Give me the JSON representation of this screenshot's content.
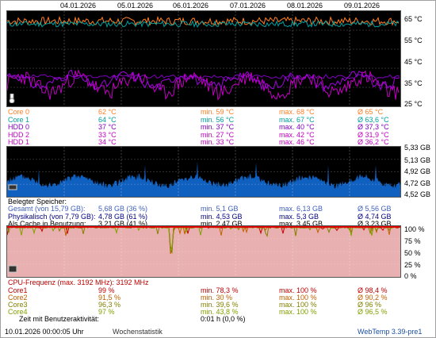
{
  "dates": [
    "04.01.2026",
    "05.01.2026",
    "06.01.2026",
    "07.01.2026",
    "08.01.2026",
    "09.01.2026"
  ],
  "temp": {
    "axis": [
      "65 °C",
      "55 °C",
      "45 °C",
      "35 °C",
      "25 °C"
    ],
    "rows": [
      {
        "name": "Core 0",
        "cur": "62 °C",
        "min": "min. 59 °C",
        "max": "max. 68 °C",
        "avg": "Ø 65 °C",
        "color": "#ff7f27"
      },
      {
        "name": "Core 1",
        "cur": "64 °C",
        "min": "min. 56 °C",
        "max": "max. 67 °C",
        "avg": "Ø 63,6 °C",
        "color": "#00a0a0"
      },
      {
        "name": "HDD 0",
        "cur": "37 °C",
        "min": "min. 37 °C",
        "max": "max. 40 °C",
        "avg": "Ø 37,3 °C",
        "color": "#8000c0"
      },
      {
        "name": "HDD 2",
        "cur": "33 °C",
        "min": "min. 27 °C",
        "max": "max. 42 °C",
        "avg": "Ø 31,9 °C",
        "color": "#c000c0"
      },
      {
        "name": "HDD 1",
        "cur": "34 °C",
        "min": "min. 33 °C",
        "max": "max. 46 °C",
        "avg": "Ø 36,2 °C",
        "color": "#c000c0"
      }
    ]
  },
  "mem": {
    "axis": [
      "5,33 GB",
      "5,13 GB",
      "4,92 GB",
      "4,72 GB",
      "4,52 GB"
    ],
    "header": "Belegter Speicher:",
    "rows": [
      {
        "name": "Gesamt (von 15,79 GB):",
        "cur": "5,68 GB (36 %)",
        "min": "min. 5,1 GB",
        "max": "max. 6,13 GB",
        "avg": "Ø 5,56 GB",
        "color": "#4060c0"
      },
      {
        "name": "Physikalisch (von 7,79 GB):",
        "cur": "4,78 GB (61 %)",
        "min": "min. 4,53 GB",
        "max": "max. 5,3 GB",
        "avg": "Ø 4,74 GB",
        "color": "#000080"
      },
      {
        "name": "Als Cache in Benutzung:",
        "cur": "3,21 GB (41 %)",
        "min": "min. 2,47 GB",
        "max": "max. 3,45 GB",
        "avg": "Ø 3,23 GB",
        "color": "#000000"
      }
    ]
  },
  "cpu": {
    "axis": [
      "100 %",
      "75 %",
      "50 %",
      "25 %",
      "0 %"
    ],
    "header": "CPU-Frequenz (max. 3192 MHz): 3192 MHz",
    "rows": [
      {
        "name": "Core1",
        "cur": "99 %",
        "min": "min. 78,3 %",
        "max": "max. 100 %",
        "avg": "Ø 98,4 %",
        "color": "#c00000"
      },
      {
        "name": "Core2",
        "cur": "91,5 %",
        "min": "min. 30 %",
        "max": "max. 100 %",
        "avg": "Ø 90,2 %",
        "color": "#c06000"
      },
      {
        "name": "Core3",
        "cur": "96,3 %",
        "min": "min. 39,6 %",
        "max": "max. 100 %",
        "avg": "Ø 96 %",
        "color": "#808000"
      },
      {
        "name": "Core4",
        "cur": "97 %",
        "min": "min. 43,8 %",
        "max": "max. 100 %",
        "avg": "Ø 96,5 %",
        "color": "#80a000"
      }
    ],
    "idle_label": "Zeit mit Benutzeraktivität:",
    "idle_value": "0:01 h (0,0 %)"
  },
  "footer": {
    "timestamp": "10.01.2026 00:00:05 Uhr",
    "mode": "Wochenstatistik",
    "version": "WebTemp 3.39-pre1"
  }
}
